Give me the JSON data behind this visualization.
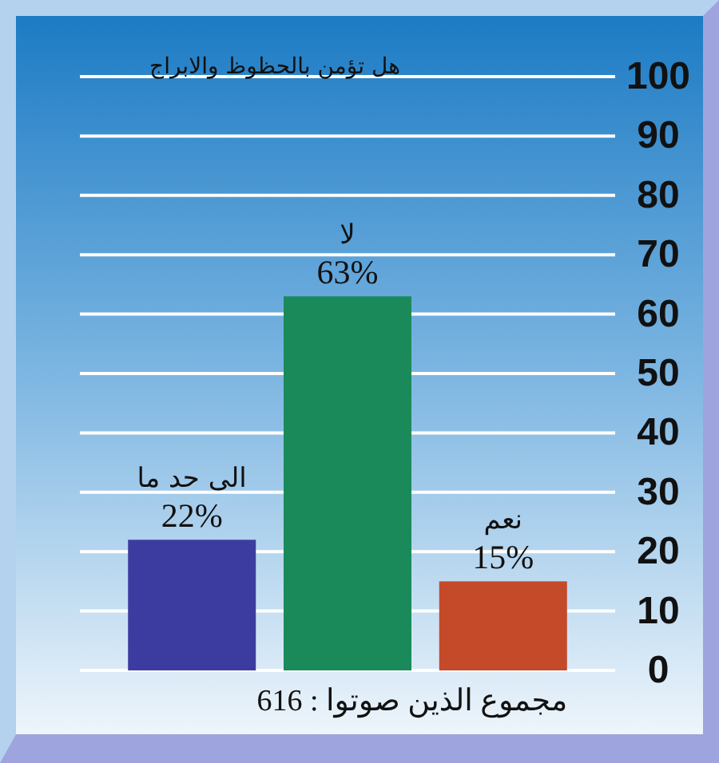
{
  "chart_data": {
    "type": "bar",
    "title": "هل تؤمن بالحظوظ والابراج",
    "categories": [
      "الى حد ما",
      "لا",
      "نعم"
    ],
    "values": [
      22,
      63,
      15
    ],
    "colors": [
      "#3c3ca0",
      "#1b8a5a",
      "#c44a2a"
    ],
    "value_labels": [
      "22%",
      "63%",
      "15%"
    ],
    "ylim": [
      0,
      100
    ],
    "yticks": [
      0,
      10,
      20,
      30,
      40,
      50,
      60,
      70,
      80,
      90,
      100
    ],
    "grid": "y",
    "annotations": [
      "مجموع الذين صوتوا : 616"
    ]
  }
}
